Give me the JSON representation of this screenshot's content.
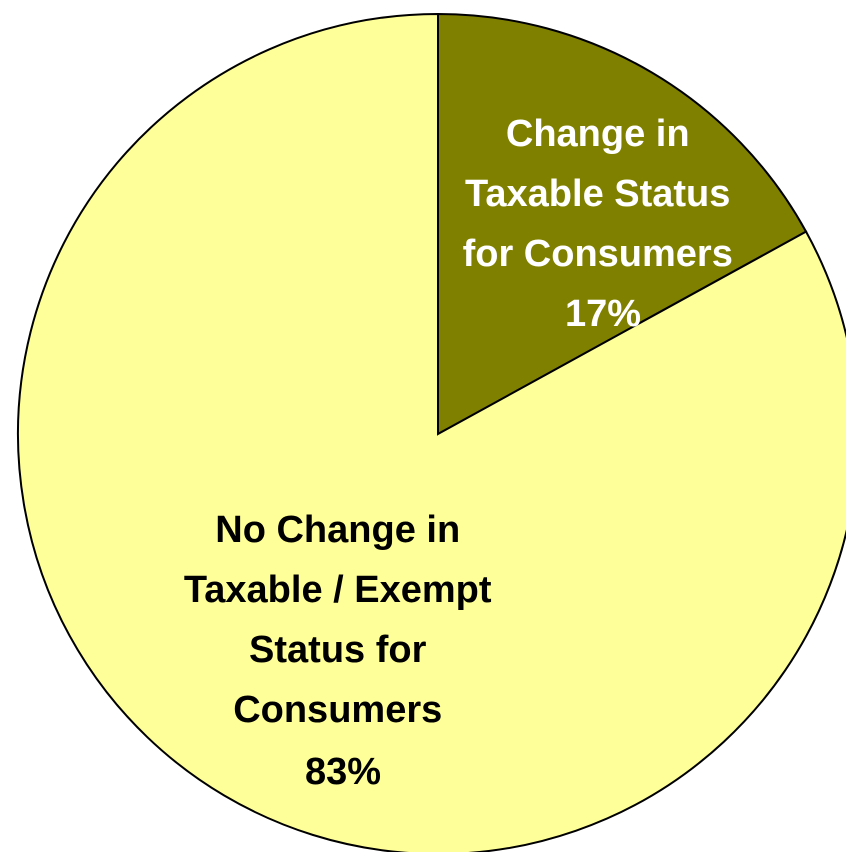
{
  "chart_data": {
    "type": "pie",
    "title": "",
    "slices": [
      {
        "label_lines": [
          "Change in",
          "Taxable Status",
          "for Consumers"
        ],
        "percent_label": "17%",
        "value": 17,
        "color": "#808000",
        "text_color": "#FFFFFF"
      },
      {
        "label_lines": [
          "No Change in",
          "Taxable / Exempt",
          "Status for",
          "Consumers"
        ],
        "percent_label": "83%",
        "value": 83,
        "color": "#FFFF99",
        "text_color": "#000000"
      }
    ],
    "start_angle_deg": 0,
    "direction": "clockwise",
    "outline_color": "#000000",
    "legend": "none"
  }
}
